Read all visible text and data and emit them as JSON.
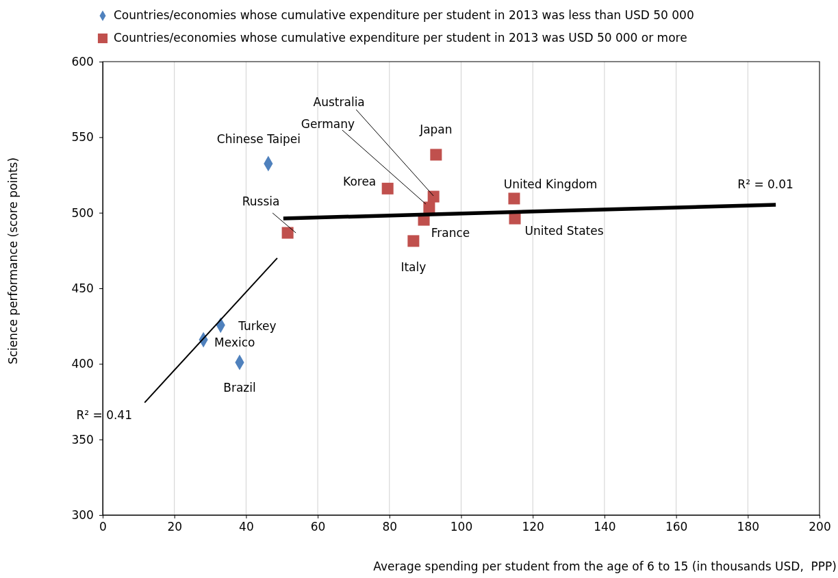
{
  "chart_data": {
    "type": "scatter",
    "xlabel": "Average spending per student from the age of 6 to 15 (in thousands USD,  PPP)",
    "ylabel": "Science performance (score points)",
    "xlim": [
      0,
      200
    ],
    "xticks": [
      0,
      20,
      40,
      60,
      80,
      100,
      120,
      140,
      160,
      180,
      200
    ],
    "ylim": [
      300,
      600
    ],
    "yticks": [
      300,
      350,
      400,
      450,
      500,
      550,
      600
    ],
    "grid": "x",
    "legend": "top",
    "series": [
      {
        "name": "Countries/economies whose cumulative expenditure per student in 2013 was less than USD 50 000",
        "color": "#4f81bd",
        "marker": "diamond",
        "x": [
          46.2,
          32.9,
          28.1,
          38.2
        ],
        "values": [
          532.5,
          425.6,
          416,
          401
        ]
      },
      {
        "name": "Countries/economies whose cumulative expenditure per student in 2013 was USD 50 000 or more",
        "color": "#c0504d",
        "marker": "square",
        "x": [
          51.6,
          79.5,
          93.0,
          92.3,
          91.1,
          89.6,
          86.7,
          114.8,
          115.0
        ],
        "values": [
          486.7,
          516,
          538.4,
          510.7,
          503.5,
          495.3,
          481.3,
          509.4,
          496.2
        ]
      },
      {
        "type": "line",
        "color": "#000000",
        "x": [
          50.4,
          187.8
        ],
        "values": [
          496.2,
          505.3
        ]
      },
      {
        "type": "line",
        "color": "#000000",
        "x": [
          11.7,
          48.7
        ],
        "values": [
          374.4,
          470.0
        ]
      }
    ],
    "annotations": [
      {
        "text": "Chinese Taipei",
        "x": 46.2,
        "y": 532.5
      },
      {
        "text": "Turkey",
        "x": 32.9,
        "y": 425.6
      },
      {
        "text": "Mexico",
        "x": 28.1,
        "y": 416
      },
      {
        "text": "Brazil",
        "x": 38.2,
        "y": 401
      },
      {
        "text": "Russia",
        "x": 51.6,
        "y": 486.7
      },
      {
        "text": "Korea",
        "x": 79.5,
        "y": 516
      },
      {
        "text": "Japan",
        "x": 93.0,
        "y": 538.4
      },
      {
        "text": "Australia",
        "x": 92.3,
        "y": 510.7
      },
      {
        "text": "Germany",
        "x": 91.1,
        "y": 503.5
      },
      {
        "text": "France",
        "x": 89.6,
        "y": 495.3
      },
      {
        "text": "Italy",
        "x": 86.7,
        "y": 481.3
      },
      {
        "text": "United Kingdom",
        "x": 114.8,
        "y": 509.4
      },
      {
        "text": "United States",
        "x": 115.0,
        "y": 496.2
      },
      {
        "text": "R² = 0.01",
        "x": 187.8,
        "y": 505.3
      },
      {
        "text": "R² = 0.41",
        "x": 11.7,
        "y": 374.4
      }
    ]
  }
}
